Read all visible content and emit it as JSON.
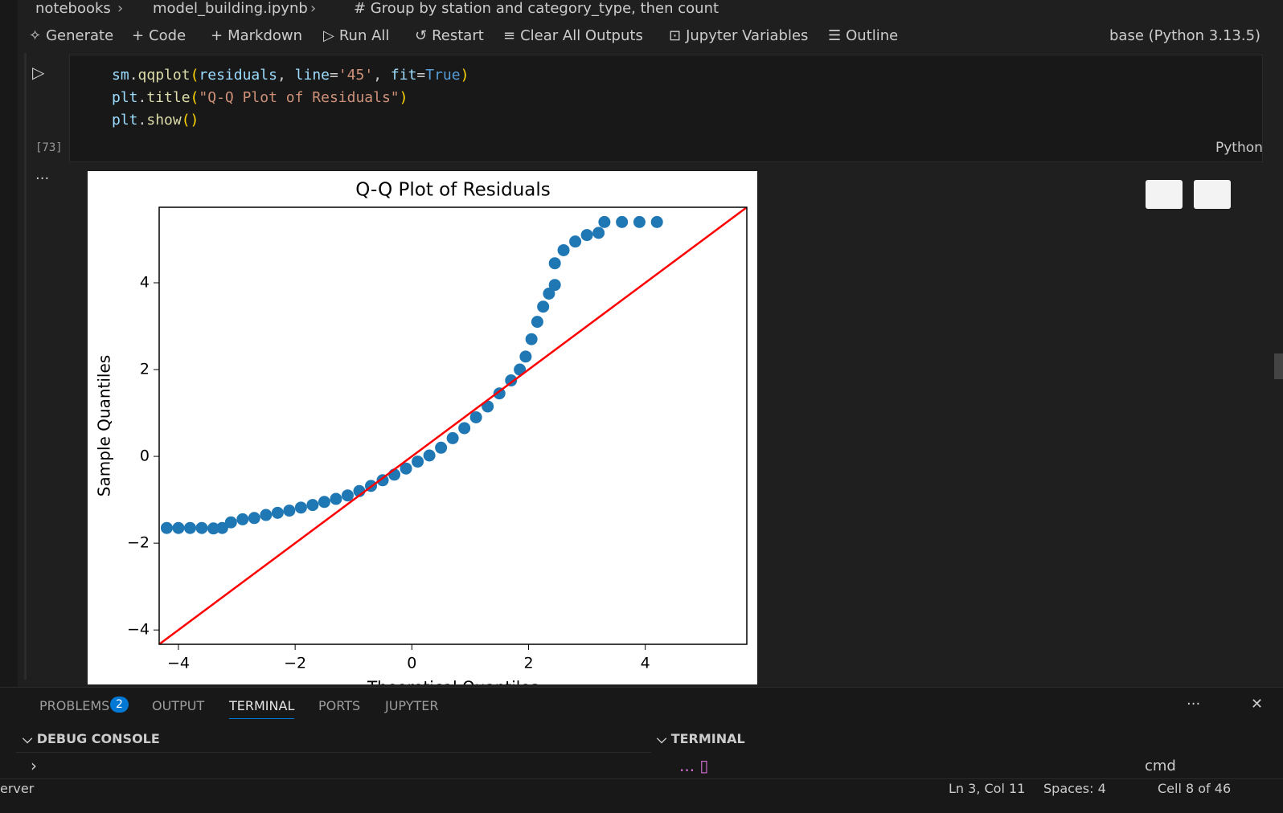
{
  "breadcrumb": [
    "notebooks",
    "model_building.ipynb",
    "# Group by station and category_type, then count"
  ],
  "toolbar": {
    "items": [
      "Generate",
      "Code",
      "Markdown",
      "Run All",
      "Restart",
      "Clear All Outputs",
      "Jupyter Variables",
      "Outline"
    ],
    "kernel": "base (Python 3.13.5)"
  },
  "cell": {
    "execution_count": "[73]",
    "language": "Python",
    "code": [
      [
        {
          "text": "sm",
          "color": "#9cdcfe"
        },
        {
          "text": ".",
          "color": "#cccccc"
        },
        {
          "text": "qqplot",
          "color": "#dcdcaa"
        },
        {
          "text": "(",
          "color": "#ffd700"
        },
        {
          "text": "residuals",
          "color": "#9cdcfe"
        },
        {
          "text": ", ",
          "color": "#cccccc"
        },
        {
          "text": "line",
          "color": "#9cdcfe"
        },
        {
          "text": "=",
          "color": "#cccccc"
        },
        {
          "text": "'45'",
          "color": "#ce9178"
        },
        {
          "text": ", ",
          "color": "#cccccc"
        },
        {
          "text": "fit",
          "color": "#9cdcfe"
        },
        {
          "text": "=",
          "color": "#cccccc"
        },
        {
          "text": "True",
          "color": "#569cd6"
        },
        {
          "text": ")",
          "color": "#ffd700"
        }
      ],
      [
        {
          "text": "plt",
          "color": "#9cdcfe"
        },
        {
          "text": ".",
          "color": "#cccccc"
        },
        {
          "text": "title",
          "color": "#dcdcaa"
        },
        {
          "text": "(",
          "color": "#ffd700"
        },
        {
          "text": "\"Q-Q Plot of Residuals\"",
          "color": "#ce9178"
        },
        {
          "text": ")",
          "color": "#ffd700"
        }
      ],
      [
        {
          "text": "plt",
          "color": "#9cdcfe"
        },
        {
          "text": ".",
          "color": "#cccccc"
        },
        {
          "text": "show",
          "color": "#dcdcaa"
        },
        {
          "text": "()",
          "color": "#ffd700"
        }
      ]
    ]
  },
  "chart_data": {
    "type": "scatter",
    "title": "Q-Q Plot of Residuals",
    "x_label": "Theoretical Quantiles",
    "y_label": "Sample Quantiles",
    "x": [
      -4.2,
      -4.0,
      -3.8,
      -3.6,
      -3.4,
      -3.25,
      -3.1,
      -2.9,
      -2.7,
      -2.5,
      -2.3,
      -2.1,
      -1.9,
      -1.7,
      -1.5,
      -1.3,
      -1.1,
      -0.9,
      -0.7,
      -0.5,
      -0.3,
      -0.1,
      0.1,
      0.3,
      0.5,
      0.7,
      0.9,
      1.1,
      1.3,
      1.5,
      1.7,
      1.85,
      1.95,
      2.05,
      2.15,
      2.25,
      2.35,
      2.45,
      2.45,
      2.6,
      2.8,
      3.0,
      3.2,
      3.3,
      3.6,
      3.9,
      4.2
    ],
    "values": [
      -1.65,
      -1.65,
      -1.65,
      -1.65,
      -1.66,
      -1.65,
      -1.52,
      -1.45,
      -1.42,
      -1.35,
      -1.3,
      -1.25,
      -1.18,
      -1.12,
      -1.05,
      -0.98,
      -0.9,
      -0.8,
      -0.68,
      -0.55,
      -0.42,
      -0.28,
      -0.12,
      0.02,
      0.2,
      0.42,
      0.65,
      0.9,
      1.15,
      1.45,
      1.75,
      2.0,
      2.3,
      2.7,
      3.1,
      3.45,
      3.75,
      3.95,
      4.45,
      4.75,
      4.95,
      5.1,
      5.15,
      5.4,
      5.4,
      5.4,
      5.4
    ],
    "color": "#1f77b4",
    "reference_line_color": "#ff0000",
    "xlim": [
      -4.33,
      5.74
    ],
    "ylim": [
      -4.33,
      5.74
    ],
    "xticks": [
      {
        "value": -4,
        "label": "−4"
      },
      {
        "value": -2,
        "label": "−2"
      },
      0,
      2,
      4
    ],
    "yticks": [
      {
        "value": -4,
        "label": "−4"
      },
      {
        "value": -2,
        "label": "−2"
      },
      0,
      2,
      4
    ]
  },
  "panel": {
    "tabs": [
      "PROBLEMS",
      "OUTPUT",
      "TERMINAL",
      "PORTS",
      "JUPYTER"
    ],
    "problems_badge": 2,
    "active_tab": 2,
    "sections": [
      "DEBUG CONSOLE",
      "TERMINAL"
    ],
    "terminal_name": "cmd"
  },
  "status_bar": {
    "left": "erver",
    "items": [
      "Ln 3, Col 11",
      "Spaces: 4",
      "Cell 8 of 46"
    ]
  }
}
